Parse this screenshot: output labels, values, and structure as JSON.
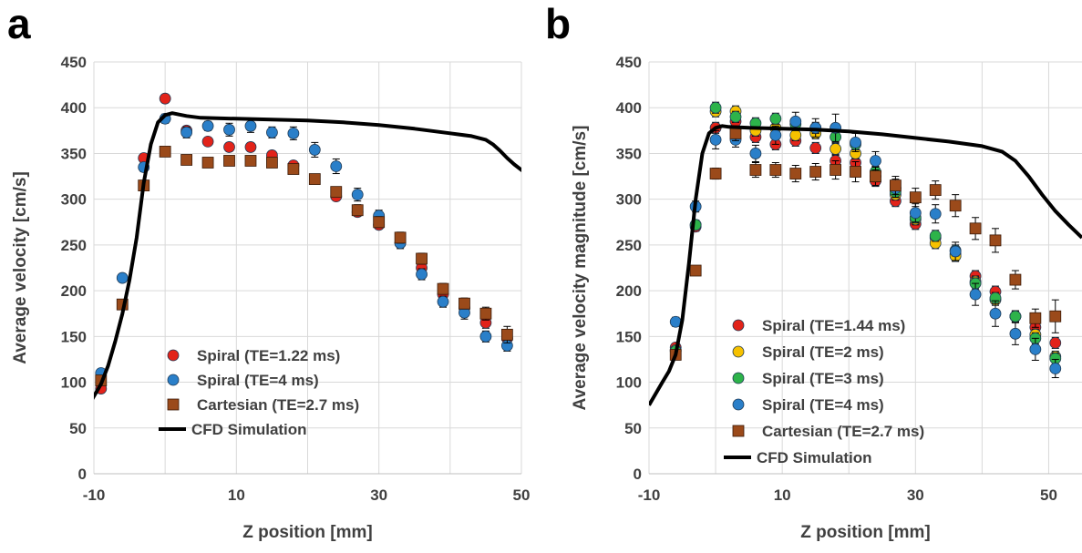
{
  "colors": {
    "red": "#e2231a",
    "yellow": "#f6c100",
    "green": "#2db34a",
    "blue": "#2a7fc9",
    "brown": "#9b4a1a",
    "cfd": "#000000",
    "grid": "#d9d9d9"
  },
  "chart_data": [
    {
      "type": "scatter",
      "panel_label": "a",
      "xlabel": "Z position [mm]",
      "ylabel": "Average velocity [cm/s]",
      "xlim": [
        -10,
        50
      ],
      "ylim": [
        0,
        450
      ],
      "xticks": [
        -10,
        10,
        30,
        50
      ],
      "xtick_labels": [
        "-10",
        "10",
        "30",
        "50"
      ],
      "yticks": [
        0,
        50,
        100,
        150,
        200,
        250,
        300,
        350,
        400,
        450
      ],
      "ytick_labels": [
        "0",
        "50",
        "100",
        "150",
        "200",
        "250",
        "300",
        "350",
        "400",
        "450"
      ],
      "vgrid": [
        -10,
        0,
        10,
        20,
        30,
        40,
        50
      ],
      "legend": "center",
      "series": [
        {
          "name": "Spiral (TE=1.22 ms)",
          "marker": "circle",
          "color": "red",
          "x": [
            -9,
            -3,
            0,
            3,
            6,
            9,
            12,
            15,
            18,
            24,
            27,
            30,
            33,
            36,
            39,
            42,
            45,
            48
          ],
          "y": [
            93,
            345,
            410,
            375,
            363,
            357,
            357,
            348,
            337,
            303,
            286,
            272,
            252,
            225,
            196,
            181,
            165,
            148
          ],
          "err": [
            3,
            4,
            3,
            3,
            3,
            3,
            3,
            3,
            3,
            4,
            4,
            4,
            4,
            5,
            5,
            5,
            6,
            6
          ]
        },
        {
          "name": "Spiral (TE=4 ms)",
          "marker": "circle",
          "color": "blue",
          "x": [
            -9,
            -6,
            -3,
            0,
            3,
            6,
            9,
            12,
            15,
            18,
            21,
            24,
            27,
            30,
            33,
            36,
            39,
            42,
            45,
            48
          ],
          "y": [
            110,
            214,
            335,
            388,
            373,
            380,
            376,
            380,
            373,
            372,
            354,
            336,
            305,
            282,
            252,
            218,
            188,
            176,
            150,
            140
          ],
          "err": [
            4,
            4,
            5,
            5,
            6,
            5,
            7,
            7,
            6,
            7,
            8,
            8,
            7,
            6,
            6,
            6,
            6,
            7,
            6,
            6
          ]
        },
        {
          "name": "Cartesian (TE=2.7 ms)",
          "marker": "square",
          "color": "brown",
          "x": [
            -9,
            -6,
            -3,
            0,
            3,
            6,
            9,
            12,
            15,
            18,
            21,
            24,
            27,
            30,
            33,
            36,
            39,
            42,
            45,
            48
          ],
          "y": [
            102,
            185,
            315,
            352,
            343,
            340,
            342,
            342,
            340,
            333,
            322,
            308,
            288,
            275,
            258,
            235,
            202,
            186,
            175,
            152
          ],
          "err": [
            3,
            4,
            4,
            4,
            4,
            4,
            4,
            4,
            5,
            5,
            5,
            5,
            6,
            6,
            6,
            6,
            6,
            6,
            7,
            9
          ]
        },
        {
          "name": "CFD Simulation",
          "marker": "line",
          "color": "cfd",
          "x": [
            -10.5,
            -9,
            -8,
            -7,
            -6,
            -5,
            -4,
            -3,
            -2,
            -1,
            0,
            1,
            3,
            5,
            10,
            15,
            20,
            25,
            30,
            35,
            40,
            43,
            45,
            46,
            47,
            48,
            49,
            50,
            51
          ],
          "y": [
            78,
            98,
            118,
            145,
            175,
            212,
            258,
            318,
            360,
            384,
            392,
            394,
            391,
            389,
            388,
            387,
            386,
            384,
            381,
            377,
            372,
            369,
            365,
            360,
            353,
            345,
            338,
            332,
            326
          ]
        }
      ]
    },
    {
      "type": "scatter",
      "panel_label": "b",
      "xlabel": "Z position [mm]",
      "ylabel": "Average velocity magnitude  [cm/s]",
      "xlim": [
        -10,
        55
      ],
      "ylim": [
        0,
        450
      ],
      "xticks": [
        -10,
        10,
        30,
        50
      ],
      "xtick_labels": [
        "-10",
        "10",
        "30",
        "50"
      ],
      "yticks": [
        0,
        50,
        100,
        150,
        200,
        250,
        300,
        350,
        400,
        450
      ],
      "ytick_labels": [
        "0",
        "50",
        "100",
        "150",
        "200",
        "250",
        "300",
        "350",
        "400",
        "450"
      ],
      "vgrid": [
        -10,
        0,
        10,
        20,
        30,
        40,
        50
      ],
      "legend": "lower-center",
      "series": [
        {
          "name": "Spiral (TE=1.44 ms)",
          "marker": "circle",
          "color": "red",
          "x": [
            -6,
            -3,
            0,
            3,
            6,
            9,
            12,
            15,
            18,
            21,
            24,
            27,
            30,
            33,
            36,
            39,
            42,
            45,
            48,
            51
          ],
          "y": [
            138,
            270,
            378,
            385,
            368,
            360,
            364,
            356,
            342,
            340,
            320,
            298,
            273,
            258,
            240,
            216,
            199,
            172,
            160,
            143
          ],
          "err": [
            4,
            5,
            6,
            6,
            6,
            6,
            6,
            6,
            6,
            6,
            6,
            6,
            6,
            6,
            6,
            6,
            6,
            6,
            6,
            6
          ]
        },
        {
          "name": "Spiral (TE=2 ms)",
          "marker": "circle",
          "color": "yellow",
          "x": [
            -6,
            -3,
            0,
            3,
            6,
            9,
            12,
            15,
            18,
            21,
            24,
            27,
            30,
            33,
            36,
            39,
            42,
            45,
            48,
            51
          ],
          "y": [
            135,
            272,
            396,
            396,
            375,
            378,
            370,
            372,
            355,
            350,
            325,
            305,
            278,
            252,
            238,
            210,
            190,
            172,
            152,
            128
          ],
          "err": [
            4,
            5,
            6,
            6,
            6,
            6,
            6,
            6,
            6,
            6,
            6,
            6,
            6,
            6,
            6,
            6,
            6,
            6,
            6,
            6
          ]
        },
        {
          "name": "Spiral (TE=3 ms)",
          "marker": "circle",
          "color": "green",
          "x": [
            -6,
            -3,
            0,
            3,
            6,
            9,
            12,
            15,
            18,
            21,
            24,
            27,
            30,
            33,
            36,
            39,
            42,
            45,
            48,
            51
          ],
          "y": [
            134,
            272,
            400,
            390,
            383,
            388,
            382,
            378,
            368,
            360,
            330,
            308,
            280,
            260,
            244,
            208,
            192,
            172,
            148,
            126
          ],
          "err": [
            4,
            5,
            6,
            6,
            6,
            6,
            6,
            6,
            6,
            6,
            6,
            6,
            6,
            6,
            6,
            6,
            6,
            6,
            6,
            6
          ]
        },
        {
          "name": "Spiral (TE=4 ms)",
          "marker": "circle",
          "color": "blue",
          "x": [
            -6,
            -3,
            0,
            3,
            6,
            9,
            12,
            15,
            18,
            21,
            24,
            27,
            30,
            33,
            36,
            39,
            42,
            45,
            48,
            51
          ],
          "y": [
            166,
            292,
            365,
            365,
            350,
            370,
            385,
            378,
            378,
            362,
            342,
            312,
            285,
            284,
            243,
            196,
            175,
            153,
            136,
            115
          ],
          "err": [
            5,
            6,
            10,
            8,
            9,
            10,
            10,
            10,
            15,
            10,
            10,
            10,
            10,
            10,
            10,
            12,
            14,
            12,
            12,
            10
          ]
        },
        {
          "name": "Cartesian (TE=2.7 ms)",
          "marker": "square",
          "color": "brown",
          "x": [
            -6,
            -3,
            0,
            3,
            6,
            9,
            12,
            15,
            18,
            21,
            24,
            27,
            30,
            33,
            36,
            39,
            42,
            45,
            48,
            51
          ],
          "y": [
            130,
            222,
            328,
            372,
            332,
            332,
            328,
            330,
            332,
            330,
            325,
            315,
            302,
            310,
            293,
            268,
            255,
            212,
            170,
            172
          ],
          "err": [
            5,
            5,
            6,
            8,
            8,
            8,
            9,
            9,
            10,
            11,
            10,
            10,
            10,
            10,
            12,
            12,
            13,
            10,
            10,
            18
          ]
        },
        {
          "name": "CFD Simulation",
          "marker": "line",
          "color": "cfd",
          "x": [
            -10,
            -8,
            -7,
            -6,
            -5,
            -4,
            -3,
            -2,
            -1,
            0,
            1,
            2,
            5,
            10,
            15,
            20,
            25,
            30,
            35,
            40,
            43,
            45,
            47,
            49,
            51,
            53,
            55
          ],
          "y": [
            75,
            100,
            112,
            130,
            168,
            230,
            300,
            350,
            372,
            378,
            380,
            379,
            378,
            377,
            376,
            374,
            371,
            367,
            363,
            358,
            352,
            342,
            325,
            305,
            287,
            272,
            258
          ]
        }
      ]
    }
  ]
}
